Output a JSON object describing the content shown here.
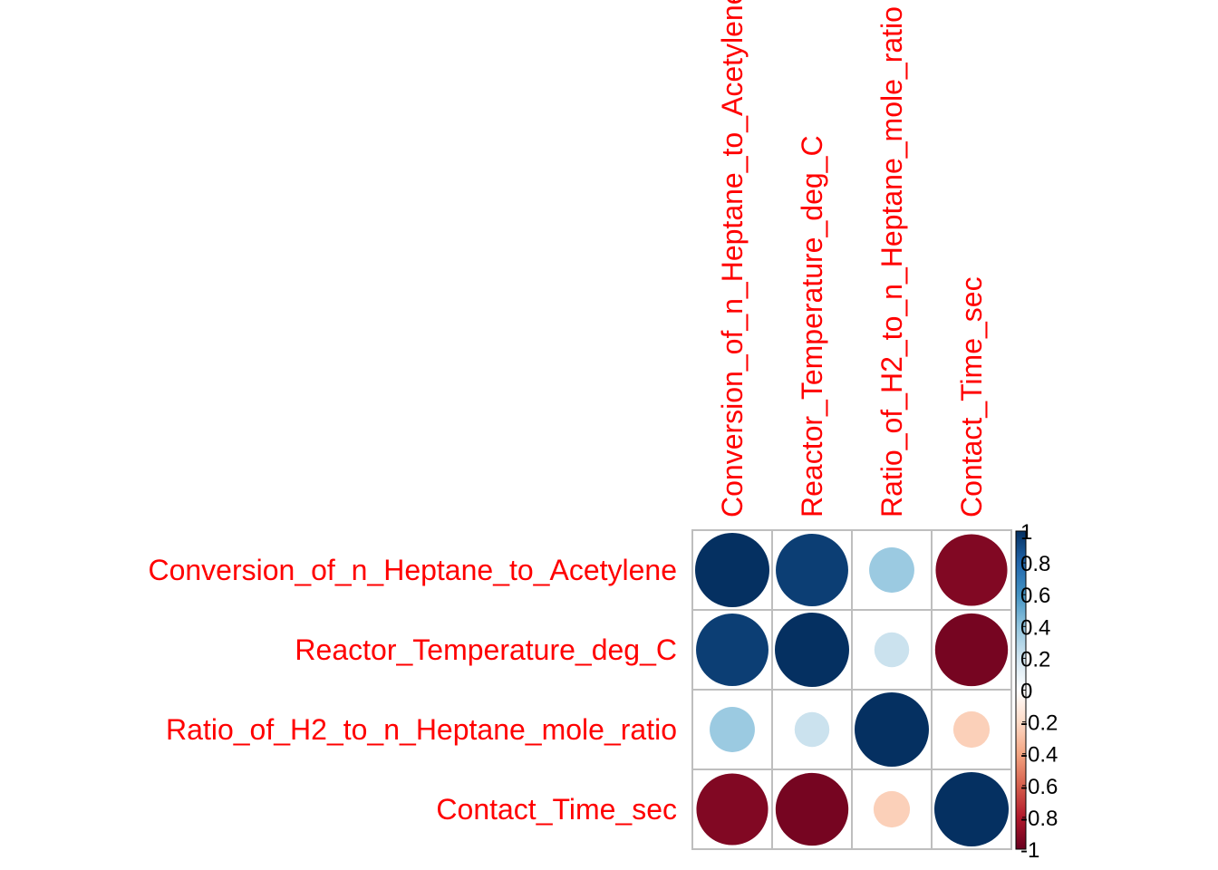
{
  "chart_data": {
    "type": "heatmap",
    "method": "circle",
    "variables": [
      "Conversion_of_n_Heptane_to_Acetylene",
      "Reactor_Temperature_deg_C",
      "Ratio_of_H2_to_n_Heptane_mole_ratio",
      "Contact_Time_sec"
    ],
    "column_labels": [
      "Conversion_of_n_Heptane_to_Acetylene",
      "Reactor_Temperature_deg_C",
      "Ratio_of_H2_to_n_Heptane_mole_ratio",
      "Contact_Time_sec"
    ],
    "matrix": [
      [
        1.0,
        0.95,
        0.37,
        -0.93
      ],
      [
        0.95,
        1.0,
        0.22,
        -0.96
      ],
      [
        0.37,
        0.22,
        1.0,
        -0.24
      ],
      [
        -0.93,
        -0.96,
        -0.24,
        1.0
      ]
    ],
    "colorbar": {
      "range": [
        -1,
        1
      ],
      "ticks": [
        "1",
        "0.8",
        "0.6",
        "0.4",
        "0.2",
        "0",
        "-0.2",
        "-0.4",
        "-0.6",
        "-0.8",
        "-1"
      ],
      "palette": [
        "#67001F",
        "#B2182B",
        "#D6604D",
        "#F4A582",
        "#FDDBC7",
        "#FFFFFF",
        "#D1E5F0",
        "#92C5DE",
        "#4393C3",
        "#2166AC",
        "#053061"
      ]
    },
    "label_color": "#FF0000",
    "grid_color": "#BEBEBE"
  }
}
